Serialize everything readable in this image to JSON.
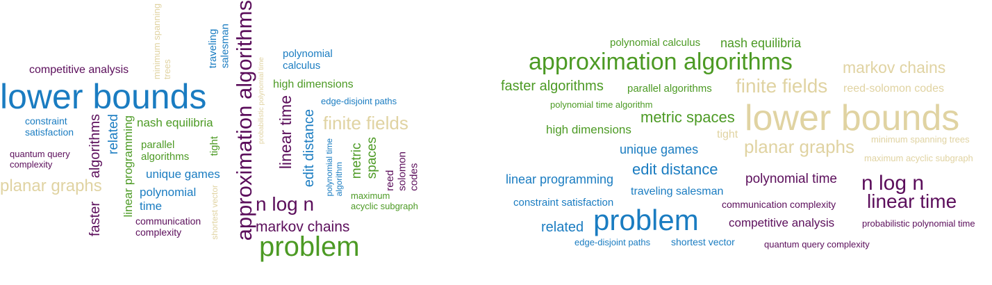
{
  "colors": {
    "purple": "#5b0e5b",
    "blue": "#1a7cc1",
    "green": "#4c9a24",
    "tan": "#e0d3a2"
  },
  "left_cloud": {
    "lower_bounds": "lower bounds",
    "approximation_algorithms": "approximation algorithms",
    "competitive_analysis": "competitive analysis",
    "minimum_spanning_trees": "minimum spanning\ntrees",
    "traveling_salesman": "traveling\nsalesman",
    "probabilistic_polynomial_time": "probabilistic polynomial time",
    "polynomial_calculus": "polynomial\ncalculus",
    "high_dimensions": "high dimensions",
    "edge_disjoint_paths": "edge-disjoint paths",
    "constraint_satisfaction": "constraint\nsatisfaction",
    "algorithms": "algorithms",
    "related": "related",
    "linear_programming": "linear programming",
    "nash_equilibria": "nash equilibria",
    "parallel_algorithms": "parallel\nalgorithms",
    "tight": "tight",
    "quantum_query_complexity": "quantum query\ncomplexity",
    "unique_games": "unique games",
    "planar_graphs": "planar graphs",
    "polynomial_time": "polynomial\ntime",
    "faster": "faster",
    "communication_complexity": "communication\ncomplexity",
    "shortest_vector": "shortest vector",
    "linear_time": "linear time",
    "edit_distance": "edit distance",
    "finite_fields": "finite fields",
    "polynomial_time_algorithm": "polynomial time\nalgorithm",
    "metric_spaces": "metric\nspaces",
    "reed_solomon_codes": "reed\nsolomon\ncodes",
    "maximum_acyclic_subgraph": "maximum\nacyclic subgraph",
    "n_log_n": "n log n",
    "markov_chains": "markov chains",
    "problem": "problem"
  },
  "right_cloud": {
    "polynomial_calculus": "polynomial calculus",
    "nash_equilibria": "nash equilibria",
    "approximation_algorithms": "approximation algorithms",
    "markov_chains": "markov chains",
    "faster_algorithms": "faster algorithms",
    "parallel_algorithms": "parallel algorithms",
    "finite_fields": "finite fields",
    "reed_solomon_codes": "reed-solomon codes",
    "polynomial_time_algorithm": "polynomial time algorithm",
    "metric_spaces": "metric spaces",
    "lower_bounds": "lower bounds",
    "high_dimensions": "high dimensions",
    "tight": "tight",
    "planar_graphs": "planar graphs",
    "minimum_spanning_trees": "minimum spanning trees",
    "unique_games": "unique games",
    "maximum_acyclic_subgraph": "maximum acyclic subgraph",
    "edit_distance": "edit distance",
    "linear_programming": "linear programming",
    "polynomial_time": "polynomial time",
    "n_log_n": "n log n",
    "traveling_salesman": "traveling salesman",
    "linear_time": "linear time",
    "constraint_satisfaction": "constraint satisfaction",
    "communication_complexity": "communication complexity",
    "related": "related",
    "problem": "problem",
    "competitive_analysis": "competitive analysis",
    "probabilistic_polynomial_time": "probabilistic polynomial time",
    "edge_disjoint_paths": "edge-disjoint paths",
    "shortest_vector": "shortest vector",
    "quantum_query_complexity": "quantum query complexity"
  }
}
